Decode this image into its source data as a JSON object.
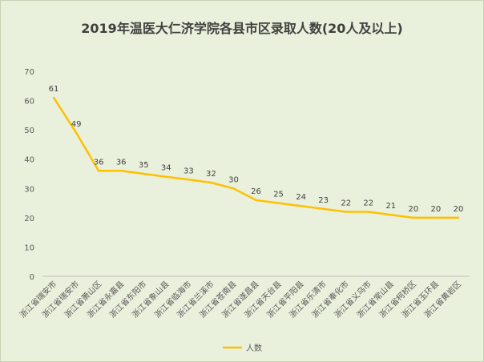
{
  "chart_data": {
    "type": "line",
    "title": "2019年温医大仁济学院各县市区录取人数(20人及以上)",
    "xlabel": "",
    "ylabel": "",
    "ylim": [
      0,
      70
    ],
    "yticks": [
      0,
      10,
      20,
      30,
      40,
      50,
      60,
      70
    ],
    "grid": false,
    "legend_position": "bottom",
    "categories": [
      "浙江省瑞安市",
      "浙江省瑞安市",
      "浙江省萧山区",
      "浙江省永嘉县",
      "浙江省东阳市",
      "浙江省象山县",
      "浙江省临海市",
      "浙江省兰溪市",
      "浙江省苍南县",
      "浙江省遂昌县",
      "浙江省天台县",
      "浙江省平阳县",
      "浙江省乐清市",
      "浙江省奉化市",
      "浙江省义乌市",
      "浙江省常山县",
      "浙江省柯桥区",
      "浙江省玉环县",
      "浙江省黄岩区"
    ],
    "series": [
      {
        "name": "人数",
        "color": "#FFC000",
        "values": [
          61,
          49,
          36,
          36,
          35,
          34,
          33,
          32,
          30,
          26,
          25,
          24,
          23,
          22,
          22,
          21,
          20,
          20,
          20
        ]
      }
    ]
  },
  "colors": {
    "background": "#E9F0DB",
    "axis": "#BFBFBF",
    "text": "#595959"
  }
}
